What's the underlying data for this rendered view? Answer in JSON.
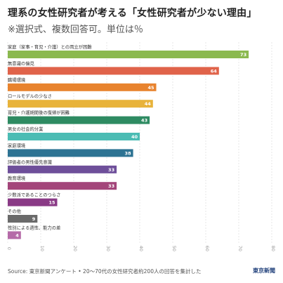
{
  "title": "理系の女性研究者が考える「女性研究者が少ない理由」",
  "subtitle": "※選択式、複数回答可。単位は％",
  "source": "Source: 東京新聞アンケート • 20〜70代の女性研究者約200人の回答を集計した",
  "brand": "東京新聞",
  "chart_data": {
    "type": "bar",
    "orientation": "horizontal",
    "title": "理系の女性研究者が考える「女性研究者が少ない理由」",
    "subtitle": "※選択式、複数回答可。単位は％",
    "categories": [
      "家庭（家事・育児・介護）との両立が困難",
      "無意識の偏見",
      "職場環境",
      "ロールモデルの少なさ",
      "育児・介護期間後の復帰が困難",
      "男女の社会的分業",
      "家庭環境",
      "評価者の男性優先意識",
      "教育環境",
      "少数派であることのつらさ",
      "その他",
      "性別による適性、能力の差"
    ],
    "values": [
      73,
      64,
      45,
      44,
      43,
      40,
      38,
      33,
      33,
      15,
      9,
      4
    ],
    "colors": [
      "#8bb94f",
      "#e0634a",
      "#e8832e",
      "#e8b33a",
      "#2e8b62",
      "#4bbcb4",
      "#2d7393",
      "#6e4f9a",
      "#a3457a",
      "#8a3a86",
      "#6a6a6a",
      "#b56aa8"
    ],
    "xlim": [
      0,
      80
    ],
    "xticks": [
      0,
      10,
      20,
      30,
      40,
      50,
      60,
      70,
      80
    ],
    "grid": true,
    "legend": "none"
  }
}
